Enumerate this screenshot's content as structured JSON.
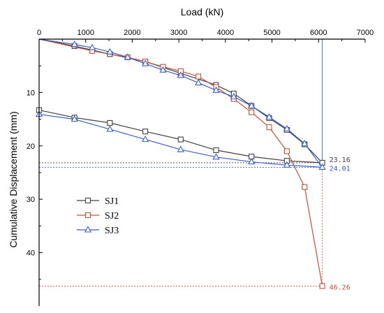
{
  "chart_data": {
    "type": "line",
    "xlabel": "Load (kN)",
    "ylabel": "Cumulative Displacement (mm)",
    "xlim": [
      0,
      7000
    ],
    "ylim": [
      0,
      50
    ],
    "x_axis_position": "top",
    "y_axis_inverted": true,
    "x_ticks": [
      0,
      1000,
      2000,
      3000,
      4000,
      5000,
      6000,
      7000
    ],
    "y_ticks": [
      10,
      20,
      30,
      40
    ],
    "legend_position": "left-bottom",
    "series": [
      {
        "name": "SJ1",
        "color": "#404040",
        "marker": "square",
        "x": [
          0,
          760,
          1520,
          2280,
          3040,
          3800,
          4180,
          4560,
          4940,
          5320,
          5700,
          6080,
          5320,
          4560,
          3800,
          3040,
          2280,
          1520,
          760,
          0
        ],
        "y": [
          0,
          1.3,
          2.8,
          4.2,
          6.4,
          8.6,
          10.2,
          12.5,
          14.8,
          17.0,
          19.7,
          23.16,
          22.8,
          22.0,
          20.8,
          18.8,
          17.3,
          15.7,
          14.7,
          13.3
        ]
      },
      {
        "name": "SJ2",
        "color": "#c0503a",
        "marker": "square",
        "x": [
          0,
          1140,
          1900,
          2280,
          2660,
          3040,
          3420,
          3800,
          4180,
          4560,
          4940,
          5320,
          5700,
          6080
        ],
        "y": [
          0,
          2.2,
          3.4,
          4.2,
          5.2,
          6.0,
          7.0,
          9.0,
          11.2,
          13.7,
          16.5,
          21.0,
          27.7,
          46.26
        ]
      },
      {
        "name": "SJ3",
        "color": "#3a5fc8",
        "marker": "triangle",
        "x": [
          0,
          760,
          1140,
          1520,
          1900,
          2280,
          2660,
          3040,
          3420,
          3800,
          4180,
          4560,
          4940,
          5320,
          5700,
          6080,
          5320,
          4560,
          3800,
          3040,
          2280,
          1520,
          760,
          0
        ],
        "y": [
          0,
          1.0,
          1.6,
          2.4,
          3.4,
          4.6,
          5.8,
          6.8,
          8.2,
          9.6,
          10.8,
          12.5,
          14.6,
          16.8,
          19.6,
          24.01,
          23.6,
          23.0,
          22.1,
          20.7,
          18.8,
          16.9,
          15.0,
          14.1
        ]
      }
    ],
    "annotations": [
      {
        "text": "23.16",
        "x": 6080,
        "y": 23.16,
        "color": "#404040"
      },
      {
        "text": "24.01",
        "x": 6080,
        "y": 24.01,
        "color": "#3a5fc8"
      },
      {
        "text": "46.26",
        "x": 6080,
        "y": 46.26,
        "color": "#c0503a"
      }
    ],
    "reference_lines": [
      {
        "type": "vertical",
        "x": 6080,
        "y_from": 0,
        "y_to": 24.01,
        "color": "#3a5fc8"
      },
      {
        "type": "vertical",
        "x": 6080,
        "y_from": 24.01,
        "y_to": 46.26,
        "color": "#c0503a"
      },
      {
        "type": "horizontal",
        "y": 23.16,
        "color": "#404040"
      },
      {
        "type": "horizontal",
        "y": 24.01,
        "color": "#3a5fc8"
      },
      {
        "type": "horizontal",
        "y": 46.26,
        "color": "#c0503a"
      }
    ]
  }
}
